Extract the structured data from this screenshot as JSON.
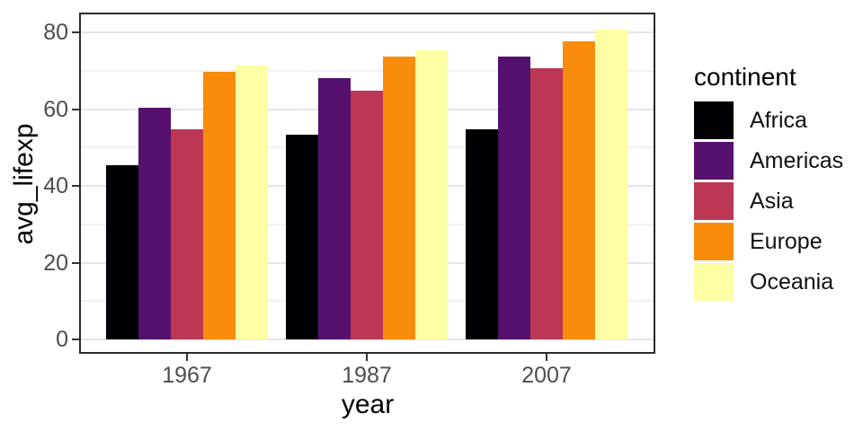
{
  "chart_data": {
    "type": "bar",
    "title": "",
    "xlabel": "year",
    "ylabel": "avg_lifexp",
    "categories": [
      "1967",
      "1987",
      "2007"
    ],
    "series": [
      {
        "name": "Africa",
        "color": "#000004",
        "values": [
          45.3,
          53.3,
          54.8
        ]
      },
      {
        "name": "Americas",
        "color": "#56106E",
        "values": [
          60.4,
          68.1,
          73.6
        ]
      },
      {
        "name": "Asia",
        "color": "#BB3754",
        "values": [
          54.7,
          64.9,
          70.7
        ]
      },
      {
        "name": "Europe",
        "color": "#F98C0A",
        "values": [
          69.7,
          73.6,
          77.7
        ]
      },
      {
        "name": "Oceania",
        "color": "#FCFFA4",
        "values": [
          71.3,
          75.3,
          80.7
        ]
      }
    ],
    "legend": {
      "title": "continent",
      "position": "right"
    },
    "y_axis": {
      "ticks": [
        0,
        20,
        40,
        60,
        80
      ],
      "minor_ticks": [
        10,
        30,
        50,
        70
      ],
      "ylim": [
        0,
        85
      ]
    },
    "x_axis": {
      "tick_labels": [
        "1967",
        "1987",
        "2007"
      ]
    },
    "grid": true,
    "style": {
      "panel_border": "#2b2b2b",
      "grid_major": "#e5e5e5",
      "grid_minor": "#f1f1f1",
      "tick_color": "#333333",
      "tick_label_color": "#4d4d4d",
      "title_color": "#000000"
    }
  }
}
